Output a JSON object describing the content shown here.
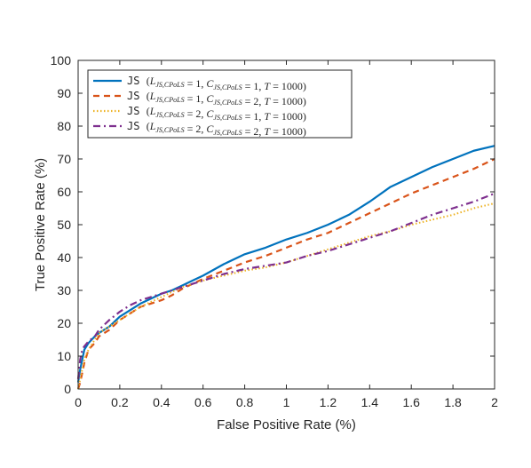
{
  "chart_data": {
    "type": "line",
    "title": "",
    "xlabel": "False Positive Rate (%)",
    "ylabel": "True Positive Rate (%)",
    "xlim": [
      0,
      2
    ],
    "ylim": [
      0,
      100
    ],
    "x_ticks": [
      "0",
      "0.2",
      "0.4",
      "0.6",
      "0.8",
      "1",
      "1.2",
      "1.4",
      "1.6",
      "1.8",
      "2"
    ],
    "y_ticks": [
      "0",
      "10",
      "20",
      "30",
      "40",
      "50",
      "60",
      "70",
      "80",
      "90",
      "100"
    ],
    "grid": false,
    "legend_position": "top-left",
    "series": [
      {
        "name": "JS (L_{JS,CPoLS} = 1, C_{JS,CPoLS} = 1, T = 1000)",
        "legend": {
          "prefix": "JS",
          "L": "1",
          "C": "1",
          "T": "1000"
        },
        "color": "#0072BD",
        "style": "solid",
        "x": [
          0,
          0.01,
          0.02,
          0.03,
          0.05,
          0.08,
          0.1,
          0.15,
          0.2,
          0.25,
          0.3,
          0.35,
          0.4,
          0.45,
          0.5,
          0.55,
          0.6,
          0.7,
          0.8,
          0.9,
          1.0,
          1.1,
          1.2,
          1.3,
          1.4,
          1.5,
          1.6,
          1.7,
          1.8,
          1.9,
          2.0
        ],
        "y": [
          2,
          6,
          9,
          12,
          14,
          16,
          17,
          19,
          22,
          24,
          26,
          27.5,
          29,
          30,
          31.5,
          33,
          34.5,
          38,
          41,
          43,
          45.5,
          47.5,
          50,
          53,
          57,
          61.5,
          64.5,
          67.5,
          70,
          72.5,
          74
        ]
      },
      {
        "name": "JS (L_{JS,CPoLS} = 1, C_{JS,CPoLS} = 2, T = 1000)",
        "legend": {
          "prefix": "JS",
          "L": "1",
          "C": "2",
          "T": "1000"
        },
        "color": "#D95319",
        "style": "dashed",
        "x": [
          0,
          0.01,
          0.02,
          0.03,
          0.05,
          0.08,
          0.1,
          0.15,
          0.2,
          0.25,
          0.3,
          0.35,
          0.4,
          0.45,
          0.5,
          0.55,
          0.6,
          0.7,
          0.8,
          0.9,
          1.0,
          1.1,
          1.2,
          1.3,
          1.4,
          1.5,
          1.6,
          1.7,
          1.8,
          1.9,
          2.0
        ],
        "y": [
          0,
          2,
          5,
          8,
          12,
          14,
          16,
          18,
          21,
          23,
          25,
          26,
          27,
          28.5,
          30.5,
          32,
          33.5,
          36,
          38.5,
          40.5,
          43,
          45.5,
          47.5,
          50.5,
          53.5,
          56.5,
          59.5,
          62,
          64.5,
          67,
          70
        ]
      },
      {
        "name": "JS (L_{JS,CPoLS} = 2, C_{JS,CPoLS} = 1, T = 1000)",
        "legend": {
          "prefix": "JS",
          "L": "2",
          "C": "1",
          "T": "1000"
        },
        "color": "#EDB120",
        "style": "dotted",
        "x": [
          0,
          0.01,
          0.02,
          0.03,
          0.05,
          0.08,
          0.1,
          0.15,
          0.2,
          0.25,
          0.3,
          0.35,
          0.4,
          0.45,
          0.5,
          0.55,
          0.6,
          0.7,
          0.8,
          0.9,
          1.0,
          1.1,
          1.2,
          1.3,
          1.4,
          1.5,
          1.6,
          1.7,
          1.8,
          1.9,
          2.0
        ],
        "y": [
          0,
          3,
          6,
          9,
          12,
          15,
          17,
          19,
          21,
          23,
          25,
          26.5,
          28,
          29.5,
          31,
          32,
          33,
          34.5,
          36,
          37,
          38.5,
          40.5,
          42.5,
          44.5,
          46.5,
          48,
          50,
          51.5,
          53,
          55,
          56.5
        ]
      },
      {
        "name": "JS (L_{JS,CPoLS} = 2, C_{JS,CPoLS} = 2, T = 1000)",
        "legend": {
          "prefix": "JS",
          "L": "2",
          "C": "2",
          "T": "1000"
        },
        "color": "#7E2F8E",
        "style": "dashdot",
        "x": [
          0,
          0.01,
          0.02,
          0.03,
          0.05,
          0.08,
          0.1,
          0.15,
          0.2,
          0.25,
          0.3,
          0.35,
          0.4,
          0.45,
          0.5,
          0.55,
          0.6,
          0.7,
          0.8,
          0.9,
          1.0,
          1.1,
          1.2,
          1.3,
          1.4,
          1.5,
          1.6,
          1.7,
          1.8,
          1.9,
          2.0
        ],
        "y": [
          3,
          9,
          12,
          13,
          14.5,
          16,
          18,
          21,
          23.5,
          25.5,
          27,
          28,
          29,
          30,
          31,
          32,
          33,
          35,
          36.5,
          37.5,
          38.5,
          40.5,
          42,
          44,
          46,
          48,
          50.5,
          53,
          55,
          57,
          59.5
        ]
      }
    ]
  }
}
